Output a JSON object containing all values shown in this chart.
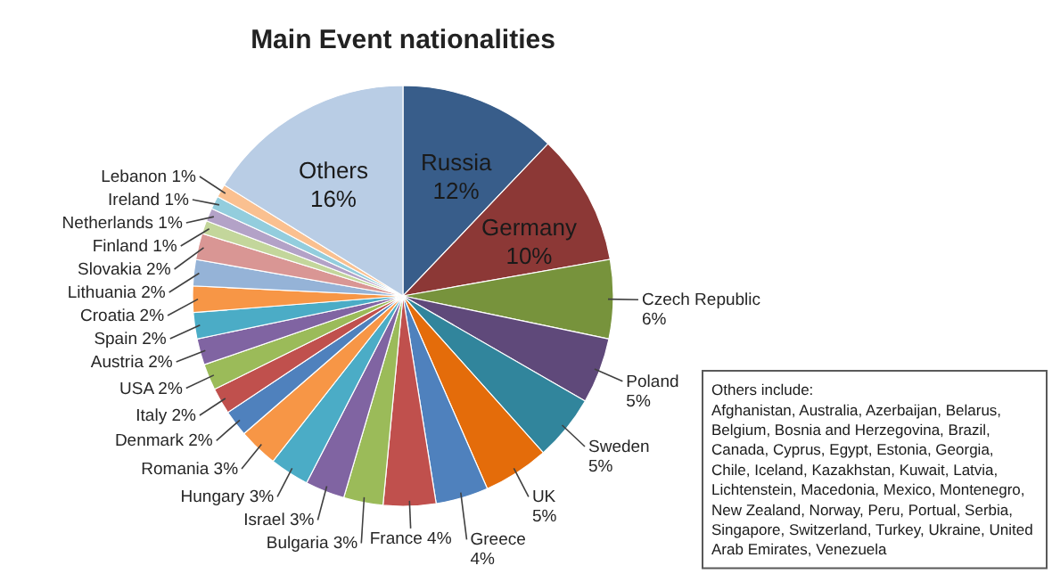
{
  "chart_data": {
    "type": "pie",
    "title": "Main Event nationalities",
    "categories": [
      "Russia",
      "Germany",
      "Czech Republic",
      "Poland",
      "Sweden",
      "UK",
      "Greece",
      "France",
      "Bulgaria",
      "Israel",
      "Hungary",
      "Romania",
      "Denmark",
      "Italy",
      "USA",
      "Austria",
      "Spain",
      "Croatia",
      "Lithuania",
      "Slovakia",
      "Finland",
      "Netherlands",
      "Ireland",
      "Lebanon",
      "Others"
    ],
    "values": [
      12,
      10,
      6,
      5,
      5,
      5,
      4,
      4,
      3,
      3,
      3,
      3,
      2,
      2,
      2,
      2,
      2,
      2,
      2,
      2,
      1,
      1,
      1,
      1,
      16
    ],
    "value_labels": [
      "12%",
      "10%",
      "6%",
      "5%",
      "5%",
      "5%",
      "4%",
      "4%",
      "3%",
      "3%",
      "3%",
      "3%",
      "2%",
      "2%",
      "2%",
      "2%",
      "2%",
      "2%",
      "2%",
      "2%",
      "1%",
      "1%",
      "1%",
      "1%",
      "16%"
    ],
    "colors": [
      "#385d8a",
      "#8c3836",
      "#77933c",
      "#5f497a",
      "#31859c",
      "#e46c0a",
      "#4f81bd",
      "#c0504d",
      "#9bbb59",
      "#8064a2",
      "#4bacc6",
      "#f79646",
      "#4f81bd",
      "#c0504d",
      "#9bbb59",
      "#8064a2",
      "#4bacc6",
      "#f79646",
      "#95b3d7",
      "#d99694",
      "#c3d69b",
      "#b3a2c7",
      "#93cddd",
      "#fac090",
      "#b9cde5"
    ],
    "annotations": [
      "Others include:",
      "Afghanistan, Australia, Azerbaijan, Belarus, Belgium, Bosnia and Herzegovina, Brazil, Canada, Cyprus,  Egypt, Estonia, Georgia, Chile, Iceland, Kazakhstan, Kuwait, Latvia, Lichtenstein, Macedonia, Mexico, Montenegro,  New Zealand, Norway, Peru, Portual, Serbia, Singapore, Switzerland, Turkey, Ukraine, United Arab Emirates, Venezuela"
    ]
  }
}
